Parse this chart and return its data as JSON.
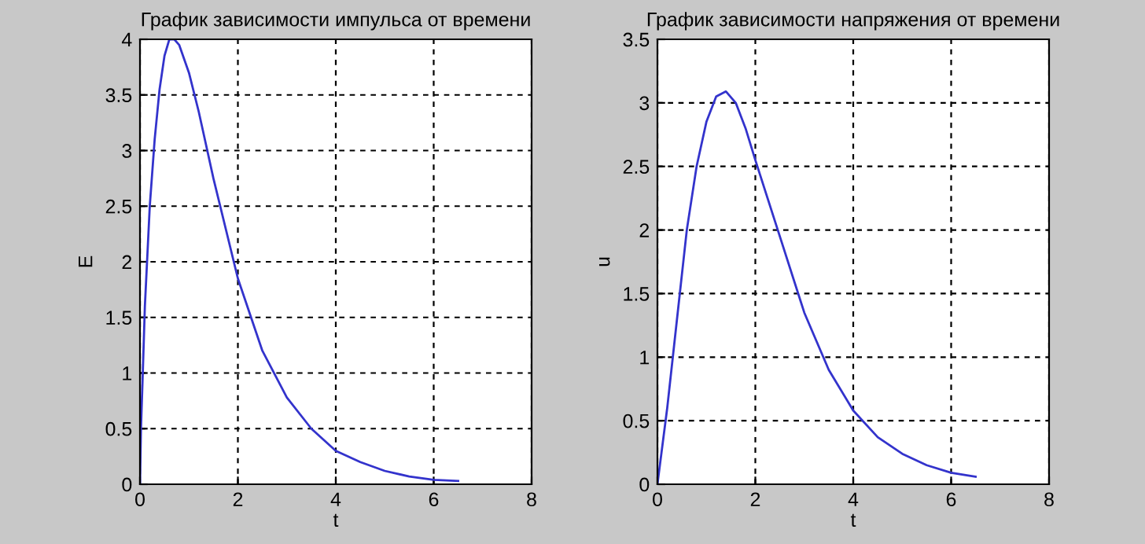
{
  "chart_data": [
    {
      "type": "line",
      "title": "График зависимости импульса от времени",
      "xlabel": "t",
      "ylabel": "E",
      "xlim": [
        0,
        8
      ],
      "ylim": [
        0,
        4
      ],
      "xticks": [
        0,
        2,
        4,
        6,
        8
      ],
      "yticks": [
        0,
        0.5,
        1,
        1.5,
        2,
        2.5,
        3,
        3.5,
        4
      ],
      "grid": true,
      "line_style": "solid",
      "series": [
        {
          "color": "#3333cc",
          "x": [
            0,
            0.02,
            0.05,
            0.1,
            0.2,
            0.3,
            0.4,
            0.5,
            0.6,
            0.7,
            0.8,
            1.0,
            1.2,
            1.5,
            2.0,
            2.5,
            3.0,
            3.5,
            4.0,
            4.5,
            5.0,
            5.5,
            6.0,
            6.5
          ],
          "values": [
            0,
            0.5,
            0.9,
            1.6,
            2.5,
            3.1,
            3.55,
            3.85,
            4.0,
            4.0,
            3.95,
            3.7,
            3.35,
            2.75,
            1.85,
            1.2,
            0.78,
            0.5,
            0.3,
            0.2,
            0.12,
            0.07,
            0.04,
            0.03
          ]
        }
      ]
    },
    {
      "type": "line",
      "title": "График зависимости напряжения от времени",
      "xlabel": "t",
      "ylabel": "u",
      "xlim": [
        0,
        8
      ],
      "ylim": [
        0,
        3.5
      ],
      "xticks": [
        0,
        2,
        4,
        6,
        8
      ],
      "yticks": [
        0,
        0.5,
        1,
        1.5,
        2,
        2.5,
        3,
        3.5
      ],
      "grid": true,
      "line_style": "solid",
      "series": [
        {
          "color": "#3333cc",
          "x": [
            0,
            0.2,
            0.4,
            0.6,
            0.8,
            1.0,
            1.2,
            1.4,
            1.6,
            1.8,
            2.0,
            2.5,
            3.0,
            3.5,
            4.0,
            4.5,
            5.0,
            5.5,
            6.0,
            6.5
          ],
          "values": [
            0,
            0.6,
            1.3,
            2.0,
            2.5,
            2.85,
            3.05,
            3.09,
            3.0,
            2.8,
            2.55,
            1.95,
            1.35,
            0.9,
            0.58,
            0.37,
            0.24,
            0.15,
            0.09,
            0.06
          ]
        }
      ]
    }
  ]
}
